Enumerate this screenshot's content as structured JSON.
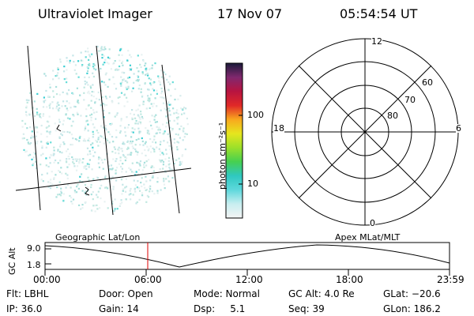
{
  "header": {
    "instrument": "Ultraviolet Imager",
    "date": "17 Nov 07",
    "time": "05:54:54 UT"
  },
  "colorbar": {
    "unit_label": "photon cm⁻²s⁻¹",
    "ticks": [
      "100",
      "10"
    ],
    "colors": [
      "#f4f4f4",
      "#c8eef0",
      "#5ed8dc",
      "#2fc8c0",
      "#46d050",
      "#9ce02a",
      "#e6e61e",
      "#f8a81e",
      "#e02828",
      "#b81440",
      "#80286e",
      "#1a1a3a"
    ]
  },
  "polar_plot": {
    "mlt_labels": {
      "top": "12",
      "bottom": "0",
      "left": "18",
      "right": "6"
    },
    "lat_labels": [
      "60",
      "70",
      "80"
    ]
  },
  "timeline": {
    "left_label": "Geographic Lat/Lon",
    "right_label": "Apex MLat/MLT",
    "y_axis_label": "GC Alt",
    "y_max": "9.0",
    "y_min": "1.8",
    "x_ticks": [
      "00:00",
      "06:00",
      "12:00",
      "18:00",
      "23:59"
    ],
    "marker_color": "#dd0000"
  },
  "info": {
    "flt": "Flt: LBHL",
    "ip": "IP: 36.0",
    "door": "Door: Open",
    "gain": "Gain: 14",
    "mode": "Mode: Normal",
    "dsp": "Dsp:     5.1",
    "gc_alt": "GC Alt: 4.0 Re",
    "seq": "Seq: 39",
    "glat": "GLat: −20.6",
    "glon": "GLon: 186.2"
  }
}
